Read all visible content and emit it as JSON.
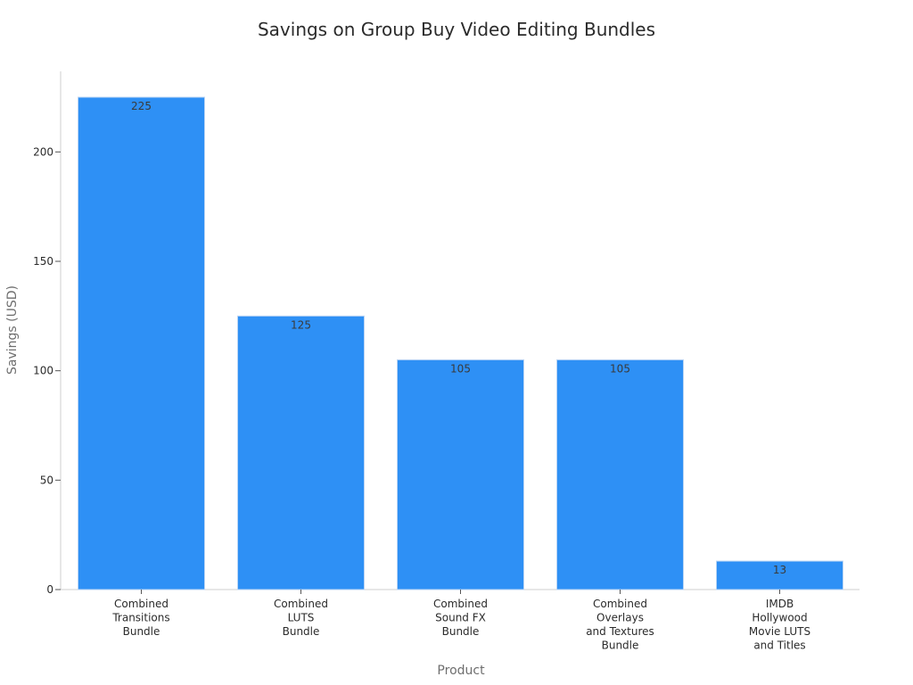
{
  "chart_data": {
    "type": "bar",
    "title": "Savings on Group Buy Video Editing Bundles",
    "xlabel": "Product",
    "ylabel": "Savings (USD)",
    "categories": [
      [
        "Combined",
        "Transitions",
        "Bundle"
      ],
      [
        "Combined",
        "LUTS",
        "Bundle"
      ],
      [
        "Combined",
        "Sound FX",
        "Bundle"
      ],
      [
        "Combined",
        "Overlays",
        "and Textures",
        "Bundle"
      ],
      [
        "IMDB",
        "Hollywood",
        "Movie LUTS",
        "and Titles"
      ]
    ],
    "values": [
      225,
      125,
      105,
      105,
      13
    ],
    "data_labels": [
      "225",
      "125",
      "105",
      "105",
      "13"
    ],
    "ylim": [
      0,
      235
    ],
    "yticks": [
      0,
      50,
      100,
      150,
      200
    ],
    "ytick_labels": [
      "0",
      "50",
      "100",
      "150",
      "200"
    ],
    "grid": false,
    "legend": "none",
    "colors": {
      "bar": "#2e90f5"
    }
  }
}
